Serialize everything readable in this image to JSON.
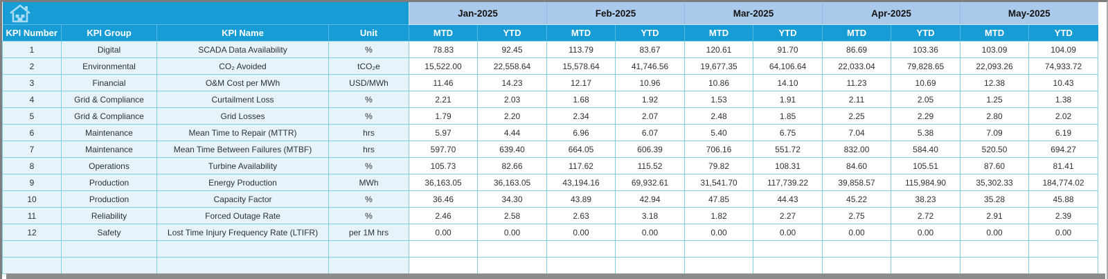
{
  "colors": {
    "accent_cyan": "#189CD6",
    "month_header_bg": "#AACAEB",
    "left_cell_bg": "#E6F3FA",
    "grid_border": "#7FCFE0",
    "frame_gray": "#7D7D7D"
  },
  "header": {
    "months": [
      "Jan-2025",
      "Feb-2025",
      "Mar-2025",
      "Apr-2025",
      "May-2025"
    ],
    "left_columns": [
      "KPI Number",
      "KPI Group",
      "KPI Name",
      "Unit"
    ],
    "period_labels": [
      "MTD",
      "YTD"
    ]
  },
  "rows": [
    {
      "number": "1",
      "group": "Digital",
      "name": "SCADA Data Availability",
      "unit": "%",
      "values": [
        "78.83",
        "92.45",
        "113.79",
        "83.67",
        "120.61",
        "91.70",
        "86.69",
        "103.36",
        "103.09",
        "104.09"
      ]
    },
    {
      "number": "2",
      "group": "Environmental",
      "name": "CO₂ Avoided",
      "unit": "tCO₂e",
      "values": [
        "15,522.00",
        "22,558.64",
        "15,578.64",
        "41,746.56",
        "19,677.35",
        "64,106.64",
        "22,033.04",
        "79,828.65",
        "22,093.26",
        "74,933.72"
      ]
    },
    {
      "number": "3",
      "group": "Financial",
      "name": "O&M Cost per MWh",
      "unit": "USD/MWh",
      "values": [
        "11.46",
        "14.23",
        "12.17",
        "10.96",
        "10.86",
        "14.10",
        "11.23",
        "10.69",
        "12.38",
        "10.43"
      ]
    },
    {
      "number": "4",
      "group": "Grid & Compliance",
      "name": "Curtailment Loss",
      "unit": "%",
      "values": [
        "2.21",
        "2.03",
        "1.68",
        "1.92",
        "1.53",
        "1.91",
        "2.11",
        "2.05",
        "1.25",
        "1.38"
      ]
    },
    {
      "number": "5",
      "group": "Grid & Compliance",
      "name": "Grid Losses",
      "unit": "%",
      "values": [
        "1.79",
        "2.20",
        "2.34",
        "2.07",
        "2.48",
        "1.85",
        "2.25",
        "2.29",
        "2.80",
        "2.02"
      ]
    },
    {
      "number": "6",
      "group": "Maintenance",
      "name": "Mean Time to Repair (MTTR)",
      "unit": "hrs",
      "values": [
        "5.97",
        "4.44",
        "6.96",
        "6.07",
        "5.40",
        "6.75",
        "7.04",
        "5.38",
        "7.09",
        "6.19"
      ]
    },
    {
      "number": "7",
      "group": "Maintenance",
      "name": "Mean Time Between Failures (MTBF)",
      "unit": "hrs",
      "values": [
        "597.70",
        "639.40",
        "664.05",
        "606.39",
        "706.16",
        "551.72",
        "832.00",
        "584.40",
        "520.50",
        "694.27"
      ]
    },
    {
      "number": "8",
      "group": "Operations",
      "name": "Turbine Availability",
      "unit": "%",
      "values": [
        "105.73",
        "82.66",
        "117.62",
        "115.52",
        "79.82",
        "108.31",
        "84.60",
        "105.51",
        "87.60",
        "81.41"
      ]
    },
    {
      "number": "9",
      "group": "Production",
      "name": "Energy Production",
      "unit": "MWh",
      "values": [
        "36,163.05",
        "36,163.05",
        "43,194.16",
        "69,932.61",
        "31,541.70",
        "117,739.22",
        "39,858.57",
        "115,984.90",
        "35,302.33",
        "184,774.02"
      ]
    },
    {
      "number": "10",
      "group": "Production",
      "name": "Capacity Factor",
      "unit": "%",
      "values": [
        "36.46",
        "34.30",
        "43.89",
        "42.94",
        "47.85",
        "44.43",
        "45.22",
        "38.23",
        "35.28",
        "45.88"
      ]
    },
    {
      "number": "11",
      "group": "Reliability",
      "name": "Forced Outage Rate",
      "unit": "%",
      "values": [
        "2.46",
        "2.58",
        "2.63",
        "3.18",
        "1.82",
        "2.27",
        "2.75",
        "2.72",
        "2.91",
        "2.39"
      ]
    },
    {
      "number": "12",
      "group": "Safety",
      "name": "Lost Time Injury Frequency Rate (LTIFR)",
      "unit": "per 1M hrs",
      "values": [
        "0.00",
        "0.00",
        "0.00",
        "0.00",
        "0.00",
        "0.00",
        "0.00",
        "0.00",
        "0.00",
        "0.00"
      ]
    }
  ],
  "empty_row_count": 2
}
